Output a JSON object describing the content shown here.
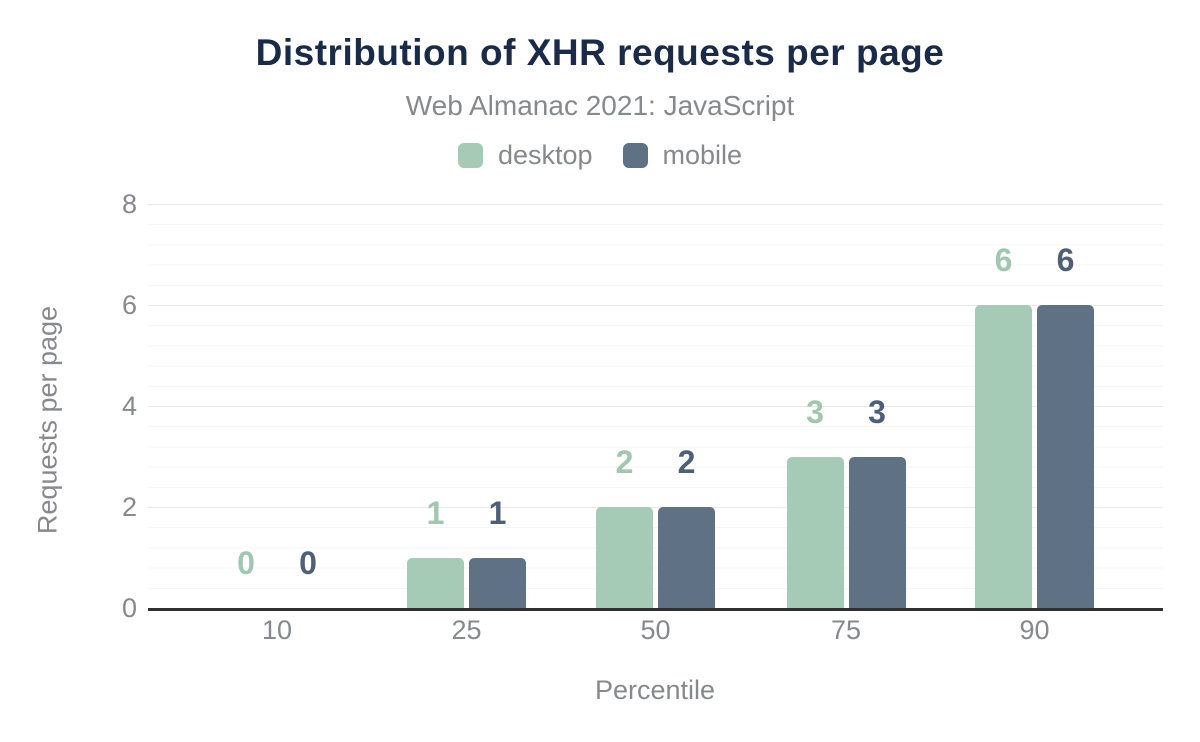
{
  "header": {
    "title": "Distribution of XHR requests per page",
    "subtitle": "Web Almanac 2021: JavaScript"
  },
  "colors": {
    "title": "#1a2b49",
    "axis_text": "#86898d",
    "baseline": "#303030",
    "major_grid": "#e9e9e9",
    "minor_grid": "#f5f5f5",
    "background": "#ffffff"
  },
  "chart_data": {
    "type": "bar",
    "title": "Distribution of XHR requests per page",
    "subtitle": "Web Almanac 2021: JavaScript",
    "categories": [
      "10",
      "25",
      "50",
      "75",
      "90"
    ],
    "series": [
      {
        "name": "desktop",
        "color": "#a5cab5",
        "label_color": "#a1c7b0",
        "values": [
          0,
          1,
          2,
          3,
          6
        ]
      },
      {
        "name": "mobile",
        "color": "#5e7185",
        "label_color": "#4e6078",
        "values": [
          0,
          1,
          2,
          3,
          6
        ]
      }
    ],
    "xlabel": "Percentile",
    "ylabel": "Requests per page",
    "ylim": [
      0,
      8
    ],
    "yticks": [
      0,
      2,
      4,
      6,
      8
    ],
    "grid": "horizontal major + minor",
    "legend_position": "top center",
    "value_labels": "above bars"
  }
}
